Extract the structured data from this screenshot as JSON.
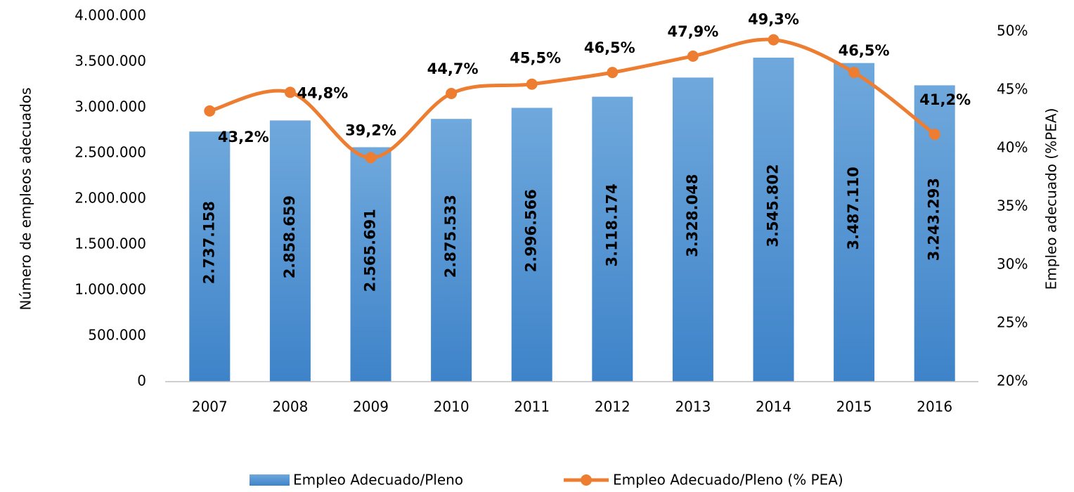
{
  "chart_data": {
    "type": "bar",
    "y_label": "Número de empleos adecuados",
    "y2_label": "Empleo adecuado  (%PEA)",
    "categories": [
      "2007",
      "2008",
      "2009",
      "2010",
      "2011",
      "2012",
      "2013",
      "2014",
      "2015",
      "2016"
    ],
    "series": [
      {
        "name": "Empleo Adecuado/Pleno",
        "type": "bar",
        "color": "#5b9bd5",
        "values": [
          2737158,
          2858659,
          2565691,
          2875533,
          2996566,
          3118174,
          3328048,
          3545802,
          3487110,
          3243293
        ],
        "value_labels": [
          "2.737.158",
          "2.858.659",
          "2.565.691",
          "2.875.533",
          "2.996.566",
          "3.118.174",
          "3.328.048",
          "3.545.802",
          "3.487.110",
          "3.243.293"
        ]
      },
      {
        "name": "Empleo Adecuado/Pleno (% PEA)",
        "type": "line",
        "axis": "y2",
        "color": "#ed7d31",
        "values": [
          43.2,
          44.8,
          39.2,
          44.7,
          45.5,
          46.5,
          47.9,
          49.3,
          46.5,
          41.2
        ],
        "value_labels": [
          "43,2%",
          "44,8%",
          "39,2%",
          "44,7%",
          "45,5%",
          "46,5%",
          "47,9%",
          "49,3%",
          "46,5%",
          "41,2%"
        ]
      }
    ],
    "ylim": [
      0,
      4000000
    ],
    "yticks": [
      0,
      {
        "value": 500000,
        "label": "500.000"
      },
      {
        "value": 1000000,
        "label": "1.000.000"
      },
      {
        "value": 1500000,
        "label": "1.500.000"
      },
      {
        "value": 2000000,
        "label": "2.000.000"
      },
      {
        "value": 2500000,
        "label": "2.500.000"
      },
      {
        "value": 3000000,
        "label": "3.000.000"
      },
      {
        "value": 3500000,
        "label": "3.500.000"
      },
      {
        "value": 4000000,
        "label": "4.000.000"
      }
    ],
    "y2lim": [
      20,
      50
    ],
    "y2ticks": [
      {
        "value": 20,
        "label": "20%"
      },
      {
        "value": 25,
        "label": "25%"
      },
      {
        "value": 30,
        "label": "30%"
      },
      {
        "value": 35,
        "label": "35%"
      },
      {
        "value": 40,
        "label": "40%"
      },
      {
        "value": 45,
        "label": "45%"
      },
      {
        "value": 50,
        "label": "50%"
      }
    ],
    "legend": "bottom"
  }
}
